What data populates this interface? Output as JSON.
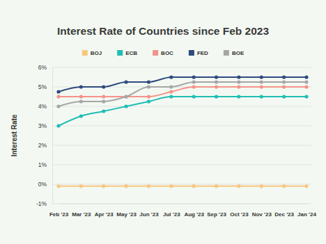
{
  "chart_data": {
    "type": "line",
    "title": "Interest Rate of Countries since Feb 2023",
    "y_label": "Interest Rate",
    "categories": [
      "Feb '23",
      "Mar '23",
      "Apr '23",
      "May '23",
      "Jun '23",
      "Jul '23",
      "Aug '23",
      "Sep '23",
      "Oct '23",
      "Nov '23",
      "Dec '23",
      "Jan '24"
    ],
    "series": [
      {
        "name": "BOJ",
        "color": "#f7c77e",
        "values": [
          -0.1,
          -0.1,
          -0.1,
          -0.1,
          -0.1,
          -0.1,
          -0.1,
          -0.1,
          -0.1,
          -0.1,
          -0.1,
          -0.1
        ]
      },
      {
        "name": "ECB",
        "color": "#20bdb5",
        "values": [
          3.0,
          3.5,
          3.75,
          4.0,
          4.25,
          4.5,
          4.5,
          4.5,
          4.5,
          4.5,
          4.5,
          4.5
        ]
      },
      {
        "name": "BOC",
        "color": "#f4938b",
        "values": [
          4.5,
          4.5,
          4.5,
          4.5,
          4.5,
          4.75,
          5.0,
          5.0,
          5.0,
          5.0,
          5.0,
          5.0
        ]
      },
      {
        "name": "FED",
        "color": "#2f4a7d",
        "values": [
          4.75,
          5.0,
          5.0,
          5.25,
          5.25,
          5.5,
          5.5,
          5.5,
          5.5,
          5.5,
          5.5,
          5.5
        ]
      },
      {
        "name": "BOE",
        "color": "#a6a6a6",
        "values": [
          4.0,
          4.25,
          4.25,
          4.5,
          5.0,
          5.0,
          5.25,
          5.25,
          5.25,
          5.25,
          5.25,
          5.25
        ]
      }
    ],
    "ylim": [
      -1,
      6
    ],
    "yticks": [
      {
        "value": -1,
        "label": "-1%"
      },
      {
        "value": 0,
        "label": "0%"
      },
      {
        "value": 1,
        "label": "1%"
      },
      {
        "value": 2,
        "label": "2%"
      },
      {
        "value": 3,
        "label": "3%"
      },
      {
        "value": 4,
        "label": "4%"
      },
      {
        "value": 5,
        "label": "5%"
      },
      {
        "value": 6,
        "label": "6%"
      }
    ],
    "grid": true,
    "legend": "top",
    "marker": "circle"
  }
}
